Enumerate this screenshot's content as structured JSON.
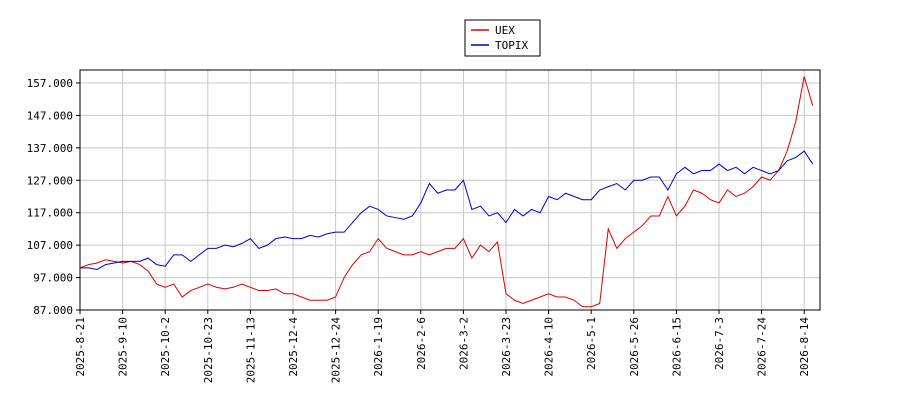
{
  "chart_data": {
    "type": "line",
    "categories": [
      "2025-8-21",
      null,
      null,
      null,
      null,
      "2025-9-10",
      null,
      null,
      null,
      null,
      "2025-10-2",
      null,
      null,
      null,
      null,
      "2025-10-23",
      null,
      null,
      null,
      null,
      "2025-11-13",
      null,
      null,
      null,
      null,
      "2025-12-4",
      null,
      null,
      null,
      null,
      "2025-12-24",
      null,
      null,
      null,
      null,
      "2026-1-19",
      null,
      null,
      null,
      null,
      "2026-2-6",
      null,
      null,
      null,
      null,
      "2026-3-2",
      null,
      null,
      null,
      null,
      "2026-3-23",
      null,
      null,
      null,
      null,
      "2026-4-10",
      null,
      null,
      null,
      null,
      "2026-5-1",
      null,
      null,
      null,
      null,
      "2026-5-26",
      null,
      null,
      null,
      null,
      "2026-6-15",
      null,
      null,
      null,
      null,
      "2026-7-3",
      null,
      null,
      null,
      null,
      "2026-7-24",
      null,
      null,
      null,
      null,
      "2026-8-14",
      null
    ],
    "series": [
      {
        "name": "UEX",
        "color": "#dd0000",
        "values": [
          100,
          101,
          101.5,
          102.5,
          102,
          101.5,
          102,
          101,
          99,
          95,
          94,
          95,
          91,
          93,
          94,
          95,
          94,
          93.5,
          94,
          95,
          94,
          93,
          93,
          93.5,
          92,
          92,
          91,
          90,
          90,
          90,
          91,
          97,
          101,
          104,
          105,
          109,
          106,
          105,
          104,
          104,
          105,
          104,
          105,
          106,
          106,
          109,
          103,
          107,
          105,
          108,
          92,
          90,
          89,
          90,
          91,
          92,
          91,
          91,
          90,
          88,
          88,
          89,
          112,
          106,
          109,
          111,
          113,
          116,
          116,
          122,
          116,
          119,
          124,
          123,
          121,
          120,
          124,
          122,
          123,
          125,
          128,
          127,
          130,
          136,
          145,
          159,
          150
        ]
      },
      {
        "name": "TOPIX",
        "color": "#0000cc",
        "values": [
          100,
          100,
          99.5,
          101,
          101.5,
          102,
          102,
          102,
          103,
          101,
          100.5,
          104,
          104,
          102,
          104,
          106,
          106,
          107,
          106.5,
          107.5,
          109,
          106,
          107,
          109,
          109.5,
          109,
          109,
          110,
          109.5,
          110.5,
          111,
          111,
          114,
          117,
          119,
          118,
          116,
          115.5,
          115,
          116,
          120,
          126,
          123,
          124,
          124,
          127,
          118,
          119,
          116,
          117,
          114,
          118,
          116,
          118,
          117,
          122,
          121,
          123,
          122,
          121,
          121,
          124,
          125,
          126,
          124,
          127,
          127,
          128,
          128,
          124,
          129,
          131,
          129,
          130,
          130,
          132,
          130,
          131,
          129,
          131,
          130,
          129,
          130,
          133,
          134,
          136,
          132
        ]
      }
    ],
    "ylim": [
      87,
      161
    ],
    "yticks": [
      {
        "value": 87,
        "label": "87.000"
      },
      {
        "value": 97,
        "label": "97.000"
      },
      {
        "value": 107,
        "label": "107.000"
      },
      {
        "value": 117,
        "label": "117.000"
      },
      {
        "value": 127,
        "label": "127.000"
      },
      {
        "value": 137,
        "label": "137.000"
      },
      {
        "value": 147,
        "label": "147.000"
      },
      {
        "value": 157,
        "label": "157.000"
      }
    ],
    "grid": true,
    "legend": "top"
  }
}
